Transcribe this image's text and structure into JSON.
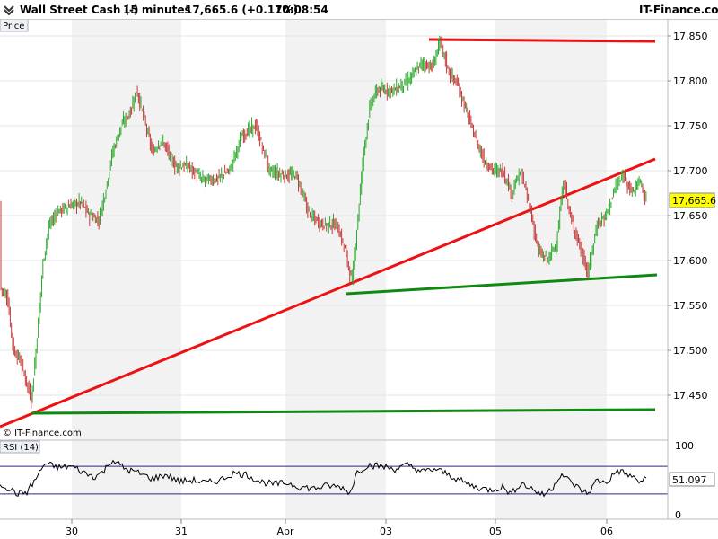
{
  "header": {
    "instrument": "Wall Street Cash (-)",
    "interval": "15 minutes",
    "last_change": "17,665.6 (+0.17%)",
    "time": "10:08:54",
    "brand": "IT-Finance.com"
  },
  "chart_data": [
    {
      "type": "candlestick",
      "panel_label": "Price",
      "watermark": "© IT-Finance.com",
      "x_tick_labels": [
        "30",
        "31",
        "Apr",
        "03",
        "05",
        "06"
      ],
      "y_ticks": [
        17450,
        17500,
        17550,
        17600,
        17650,
        17700,
        17750,
        17800,
        17850
      ],
      "y_tick_labels": [
        "17,450",
        "17,500",
        "17,550",
        "17,600",
        "17,650",
        "17,700",
        "17,750",
        "17,800",
        "17,850"
      ],
      "ylim": [
        17400,
        17870
      ],
      "last_value": 17665.6,
      "last_value_label": "17,665.6",
      "series_path": [
        [
          0,
          17570
        ],
        [
          8,
          17560
        ],
        [
          15,
          17500
        ],
        [
          22,
          17490
        ],
        [
          28,
          17470
        ],
        [
          35,
          17445
        ],
        [
          40,
          17500
        ],
        [
          48,
          17600
        ],
        [
          55,
          17640
        ],
        [
          65,
          17655
        ],
        [
          75,
          17660
        ],
        [
          90,
          17665
        ],
        [
          100,
          17650
        ],
        [
          110,
          17645
        ],
        [
          118,
          17680
        ],
        [
          125,
          17720
        ],
        [
          135,
          17750
        ],
        [
          145,
          17765
        ],
        [
          152,
          17790
        ],
        [
          160,
          17760
        ],
        [
          170,
          17720
        ],
        [
          180,
          17735
        ],
        [
          195,
          17705
        ],
        [
          210,
          17705
        ],
        [
          225,
          17690
        ],
        [
          240,
          17690
        ],
        [
          255,
          17700
        ],
        [
          270,
          17740
        ],
        [
          285,
          17750
        ],
        [
          300,
          17700
        ],
        [
          315,
          17695
        ],
        [
          330,
          17695
        ],
        [
          345,
          17650
        ],
        [
          360,
          17640
        ],
        [
          375,
          17640
        ],
        [
          385,
          17610
        ],
        [
          392,
          17575
        ],
        [
          398,
          17640
        ],
        [
          405,
          17720
        ],
        [
          412,
          17770
        ],
        [
          420,
          17790
        ],
        [
          430,
          17790
        ],
        [
          440,
          17790
        ],
        [
          455,
          17800
        ],
        [
          470,
          17820
        ],
        [
          482,
          17815
        ],
        [
          490,
          17845
        ],
        [
          500,
          17810
        ],
        [
          510,
          17795
        ],
        [
          520,
          17765
        ],
        [
          530,
          17735
        ],
        [
          540,
          17710
        ],
        [
          550,
          17700
        ],
        [
          560,
          17700
        ],
        [
          570,
          17675
        ],
        [
          580,
          17700
        ],
        [
          590,
          17660
        ],
        [
          600,
          17610
        ],
        [
          610,
          17600
        ],
        [
          620,
          17620
        ],
        [
          628,
          17690
        ],
        [
          635,
          17650
        ],
        [
          645,
          17620
        ],
        [
          655,
          17585
        ],
        [
          665,
          17640
        ],
        [
          675,
          17650
        ],
        [
          685,
          17680
        ],
        [
          695,
          17695
        ],
        [
          705,
          17675
        ],
        [
          712,
          17690
        ],
        [
          720,
          17665
        ]
      ],
      "trendlines": [
        {
          "color": "#ee1111",
          "points": [
            [
              0,
              17415
            ],
            [
              730,
              17713
            ]
          ]
        },
        {
          "color": "#ee1111",
          "points": [
            [
              478,
              17846
            ],
            [
              730,
              17844
            ]
          ]
        },
        {
          "color": "#118811",
          "points": [
            [
              35,
              17430
            ],
            [
              730,
              17434
            ]
          ]
        },
        {
          "color": "#118811",
          "points": [
            [
              386,
              17563
            ],
            [
              732,
              17584
            ]
          ]
        }
      ]
    },
    {
      "type": "line",
      "panel_label": "RSI (14)",
      "y_ticks": [
        0,
        100
      ],
      "y_tick_labels": [
        "0",
        "100"
      ],
      "ylim": [
        0,
        100
      ],
      "reference_levels": [
        30,
        70
      ],
      "last_value": 51.097,
      "last_value_label": "51.097",
      "series_path": [
        [
          0,
          45
        ],
        [
          10,
          38
        ],
        [
          20,
          30
        ],
        [
          30,
          33
        ],
        [
          40,
          52
        ],
        [
          50,
          74
        ],
        [
          65,
          68
        ],
        [
          80,
          70
        ],
        [
          95,
          60
        ],
        [
          105,
          55
        ],
        [
          115,
          62
        ],
        [
          125,
          80
        ],
        [
          140,
          66
        ],
        [
          155,
          60
        ],
        [
          170,
          52
        ],
        [
          185,
          58
        ],
        [
          200,
          48
        ],
        [
          215,
          50
        ],
        [
          230,
          46
        ],
        [
          245,
          50
        ],
        [
          260,
          60
        ],
        [
          275,
          58
        ],
        [
          290,
          48
        ],
        [
          305,
          44
        ],
        [
          320,
          46
        ],
        [
          335,
          40
        ],
        [
          350,
          38
        ],
        [
          365,
          42
        ],
        [
          380,
          40
        ],
        [
          390,
          32
        ],
        [
          398,
          62
        ],
        [
          410,
          72
        ],
        [
          425,
          70
        ],
        [
          440,
          66
        ],
        [
          455,
          72
        ],
        [
          470,
          62
        ],
        [
          485,
          66
        ],
        [
          500,
          58
        ],
        [
          515,
          48
        ],
        [
          530,
          40
        ],
        [
          545,
          36
        ],
        [
          560,
          40
        ],
        [
          570,
          30
        ],
        [
          580,
          46
        ],
        [
          595,
          36
        ],
        [
          605,
          28
        ],
        [
          615,
          38
        ],
        [
          625,
          60
        ],
        [
          635,
          48
        ],
        [
          645,
          38
        ],
        [
          655,
          30
        ],
        [
          665,
          50
        ],
        [
          675,
          46
        ],
        [
          688,
          64
        ],
        [
          700,
          58
        ],
        [
          712,
          48
        ],
        [
          720,
          51
        ]
      ]
    }
  ]
}
